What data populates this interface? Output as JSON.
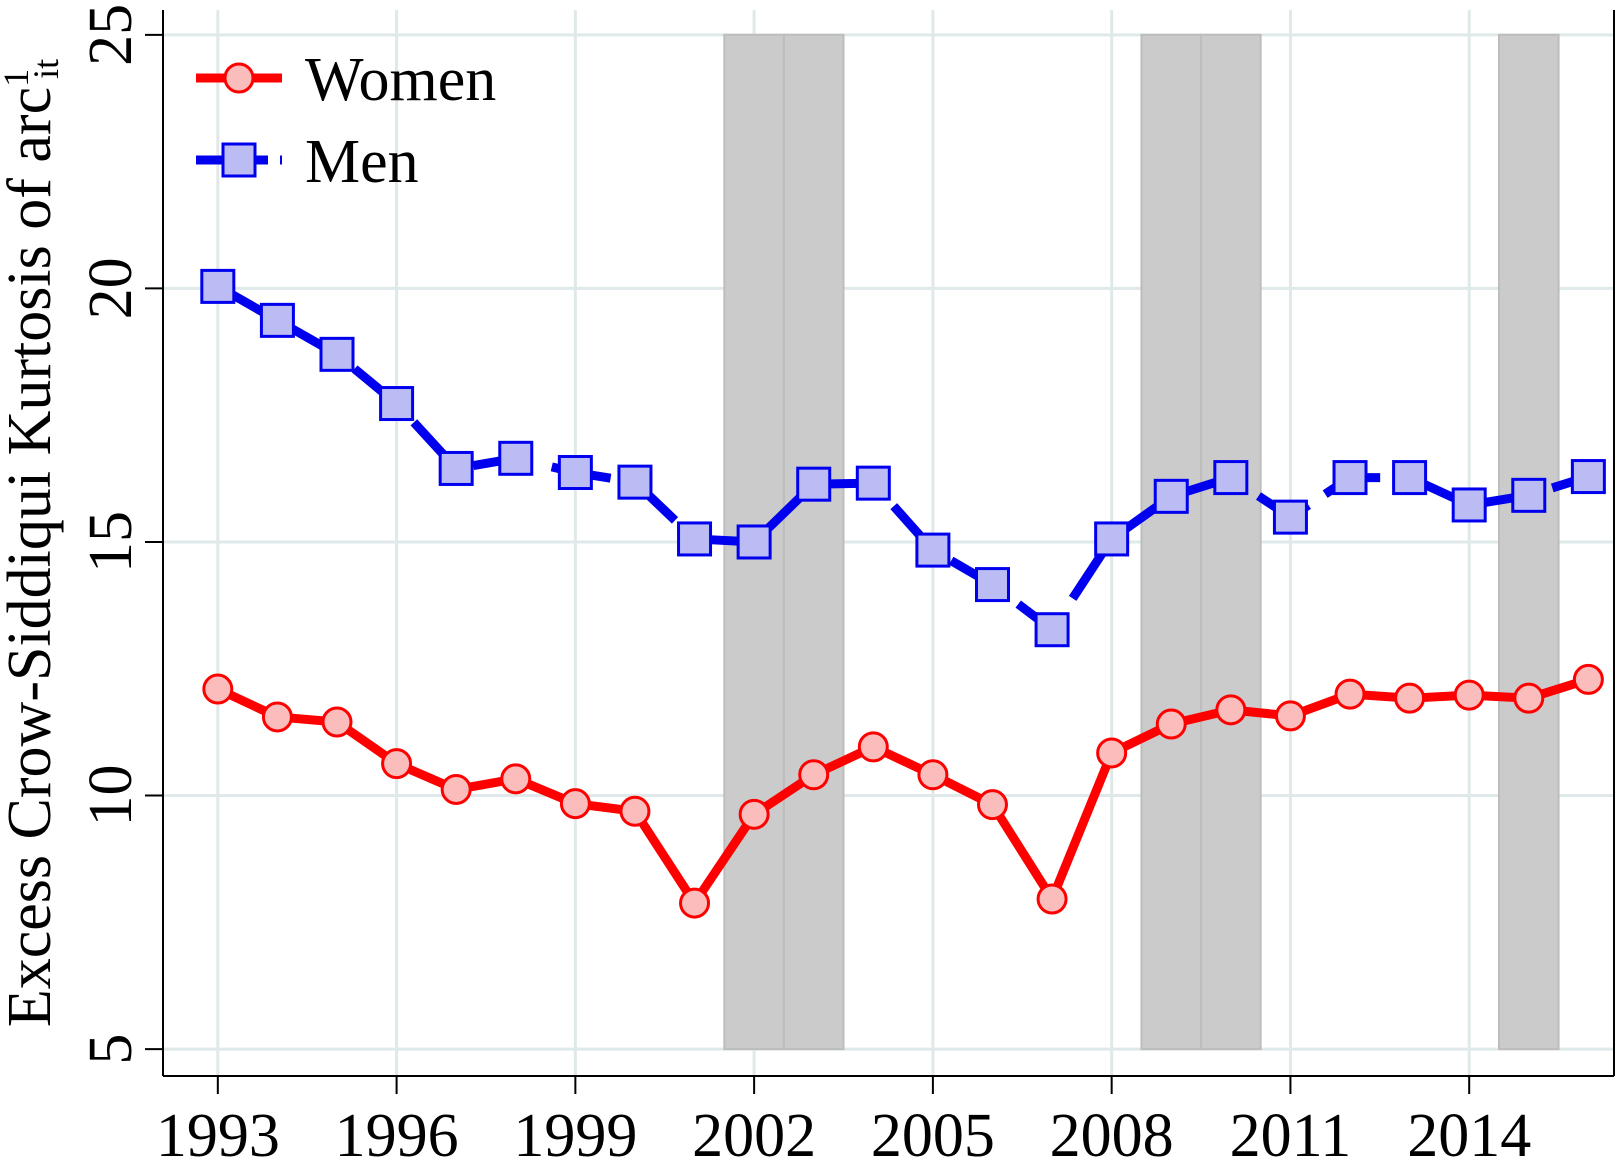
{
  "chart_data": {
    "type": "line",
    "y_label": {
      "text": "Excess Crow-Siddiqui Kurtosis of arc",
      "sup": "1",
      "sub": "it"
    },
    "x": [
      1993,
      1994,
      1995,
      1996,
      1997,
      1998,
      1999,
      2000,
      2001,
      2002,
      2003,
      2004,
      2005,
      2006,
      2007,
      2008,
      2009,
      2010,
      2011,
      2012,
      2013,
      2014,
      2015,
      2016
    ],
    "series": [
      {
        "name": "Women",
        "color": "#ff0000",
        "marker_fill": "#fbbcbc",
        "marker": "circle",
        "dash": false,
        "values": [
          12.1,
          11.55,
          11.45,
          10.63,
          10.12,
          10.33,
          9.84,
          9.69,
          7.88,
          9.63,
          10.41,
          10.96,
          10.41,
          9.82,
          7.96,
          10.84,
          11.41,
          11.69,
          11.57,
          12.0,
          11.92,
          11.98,
          11.92,
          12.29
        ]
      },
      {
        "name": "Men",
        "color": "#0000ee",
        "marker_fill": "#bcbcf5",
        "marker": "square",
        "dash": true,
        "values": [
          20.04,
          19.37,
          18.7,
          17.73,
          16.45,
          16.65,
          16.37,
          16.18,
          15.06,
          15.0,
          16.14,
          16.16,
          14.84,
          14.16,
          13.27,
          15.06,
          15.9,
          16.27,
          15.49,
          16.27,
          16.27,
          15.73,
          15.92,
          16.29
        ]
      }
    ],
    "shaded_regions": [
      [
        2001.5,
        2002.5
      ],
      [
        2002.5,
        2003.5
      ],
      [
        2008.5,
        2009.5
      ],
      [
        2009.5,
        2010.5
      ],
      [
        2014.5,
        2015.5
      ]
    ],
    "shade_range": [
      5,
      25
    ],
    "xlim": [
      1992.08,
      2016.43
    ],
    "ylim": [
      4.47,
      25.49
    ],
    "xticks": [
      1993,
      1996,
      1999,
      2002,
      2005,
      2008,
      2011,
      2014
    ],
    "yticks": [
      5,
      10,
      15,
      20,
      25
    ],
    "grid": true,
    "legend": "top-left"
  }
}
